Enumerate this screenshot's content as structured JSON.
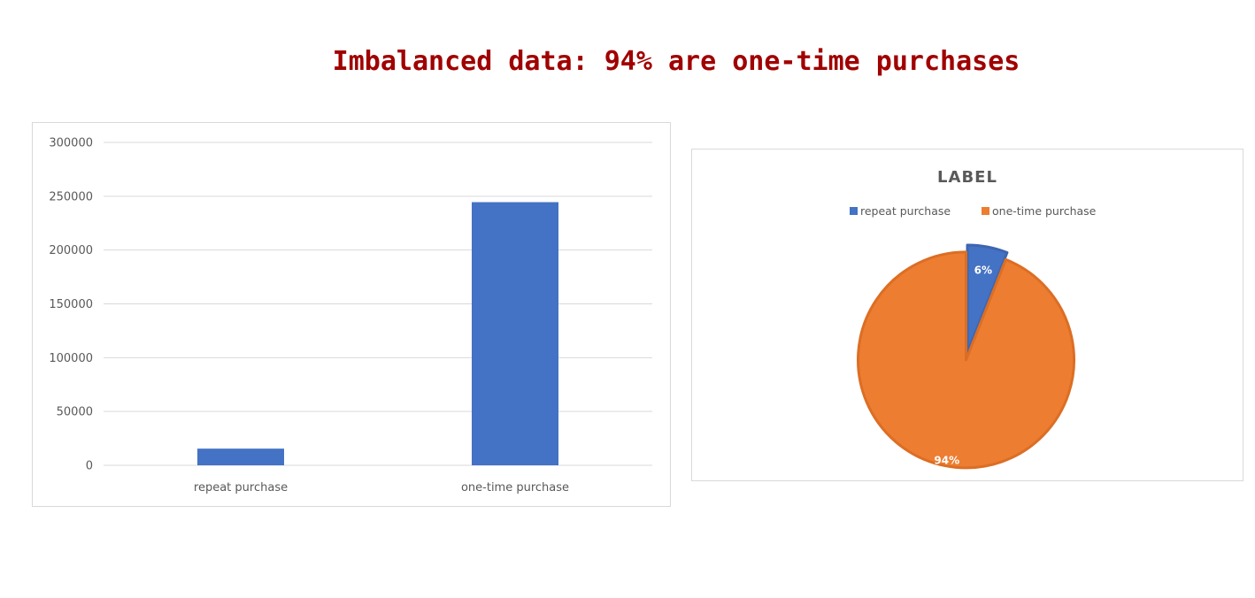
{
  "page": {
    "title": "Imbalanced data: 94% are one-time purchases"
  },
  "chart_data": [
    {
      "type": "bar",
      "title": "",
      "xlabel": "",
      "ylabel": "",
      "categories": [
        "repeat purchase",
        "one-time purchase"
      ],
      "values": [
        15500,
        244500
      ],
      "ylim": [
        0,
        300000
      ],
      "yticks": [
        0,
        50000,
        100000,
        150000,
        200000,
        250000,
        300000
      ],
      "ytick_labels": [
        "0",
        "50000",
        "100000",
        "150000",
        "200000",
        "250000",
        "300000"
      ],
      "grid": true,
      "legend": "none",
      "colors": {
        "bar": "#4472c4",
        "grid": "#d9d9d9",
        "text": "#595959"
      }
    },
    {
      "type": "pie",
      "title": "LABEL",
      "labels": [
        "repeat purchase",
        "one-time purchase"
      ],
      "values": [
        6,
        94
      ],
      "data_labels": [
        "6%",
        "94%"
      ],
      "legend": "top",
      "colors": [
        "#4472c4",
        "#ed7d31"
      ],
      "explode_slice": "one-time purchase"
    }
  ]
}
